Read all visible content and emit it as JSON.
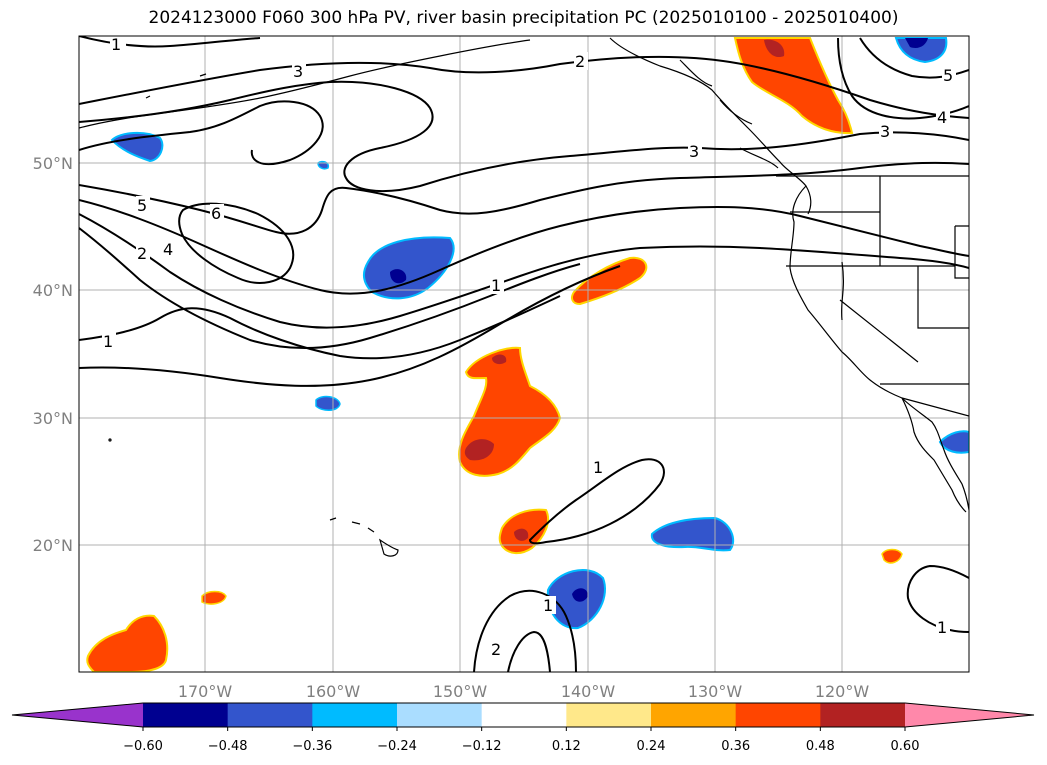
{
  "title": "2024123000 F060 300 hPa PV, river basin precipitation PC (2025010100 - 2025010400)",
  "latitude_labels": [
    "50°N",
    "40°N",
    "30°N",
    "20°N"
  ],
  "longitude_labels": [
    "170°W",
    "160°W",
    "150°W",
    "140°W",
    "130°W",
    "120°W"
  ],
  "contour_labels": [
    "1",
    "3",
    "2",
    "5",
    "4",
    "3",
    "3",
    "5",
    "6",
    "2",
    "4",
    "1",
    "1",
    "1",
    "1",
    "2",
    "1"
  ],
  "colorbar": {
    "tick_labels": [
      "−0.60",
      "−0.48",
      "−0.36",
      "−0.24",
      "−0.12",
      "0.12",
      "0.24",
      "0.36",
      "0.48",
      "0.60"
    ],
    "colors": [
      "#9933cc",
      "#000090",
      "#3355cc",
      "#00bbff",
      "#aaddff",
      "#ffffff",
      "#ffe88a",
      "#ffa500",
      "#ff4500",
      "#b22222",
      "#ff88aa"
    ]
  },
  "colors": {
    "neg_strong": "#000090",
    "neg_mid": "#3355cc",
    "neg_light": "#00bbff",
    "pos_mid": "#ff4500",
    "pos_strong": "#b22222",
    "pos_edge": "#ffd700",
    "grid": "#b0b0b0"
  }
}
